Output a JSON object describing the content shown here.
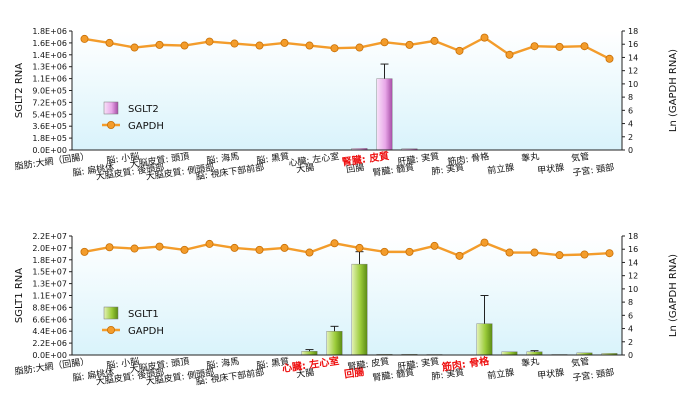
{
  "chart_data": [
    {
      "type": "bar",
      "ylabel": "SGLT2 RNA",
      "y2label": "Ln (GAPDH RNA)",
      "ylim": [
        0,
        1800000
      ],
      "yticks": [
        "0.0E+00",
        "1.8E+05",
        "3.6E+05",
        "5.4E+05",
        "7.2E+05",
        "9.0E+05",
        "1.1E+06",
        "1.3E+06",
        "1.4E+06",
        "1.6E+06",
        "1.8E+06"
      ],
      "y2lim": [
        0,
        18
      ],
      "y2ticks": [
        0,
        2,
        4,
        6,
        8,
        10,
        12,
        14,
        16,
        18
      ],
      "categories": [
        "脂肪:大網（回腸）",
        "脳: 扁桃体",
        "脳: 小脳",
        "大脳皮質: 後頭部",
        "大脳皮質: 頭頂",
        "大脳皮質: 側頭部",
        "脳: 海馬",
        "脳: 視床下部前部",
        "脳: 黒質",
        "大腸",
        "心臓: 左心室",
        "回腸",
        "腎臓: 皮質",
        "腎臓: 髄質",
        "肝臓: 実質",
        "肺: 実質",
        "筋肉: 骨格",
        "前立腺",
        "睾丸",
        "甲状腺",
        "気管",
        "子宮: 頸部"
      ],
      "highlight": [
        12
      ],
      "series": [
        {
          "name": "SGLT2",
          "kind": "bar",
          "color": "#d98ad9",
          "values": [
            0,
            0,
            0,
            0,
            0,
            0,
            0,
            0,
            0,
            0,
            0,
            25000,
            1080000,
            20000,
            0,
            0,
            0,
            0,
            0,
            0,
            0,
            0
          ],
          "errors": [
            0,
            0,
            0,
            0,
            0,
            0,
            0,
            0,
            0,
            0,
            0,
            0,
            220000,
            0,
            0,
            0,
            0,
            0,
            0,
            0,
            0,
            0
          ]
        },
        {
          "name": "GAPDH",
          "kind": "line",
          "axis": "right",
          "color": "#f39c2b",
          "values": [
            16.8,
            16.2,
            15.5,
            15.9,
            15.8,
            16.4,
            16.1,
            15.8,
            16.2,
            15.8,
            15.4,
            15.5,
            16.3,
            15.9,
            16.5,
            15.0,
            17.0,
            14.4,
            15.7,
            15.6,
            15.7,
            13.8
          ]
        }
      ]
    },
    {
      "type": "bar",
      "ylabel": "SGLT1 RNA",
      "y2label": "Ln (GAPDH RNA)",
      "ylim": [
        0,
        22000000
      ],
      "yticks": [
        "0.0E+00",
        "2.2E+06",
        "4.4E+06",
        "6.6E+06",
        "8.8E+06",
        "1.1E+07",
        "1.3E+07",
        "1.5E+07",
        "1.8E+07",
        "2.0E+07",
        "2.2E+07"
      ],
      "y2lim": [
        0,
        18
      ],
      "y2ticks": [
        0,
        2,
        4,
        6,
        8,
        10,
        12,
        14,
        16,
        18
      ],
      "categories": [
        "脂肪:大網（回腸）",
        "脳: 扁桃体",
        "脳: 小脳",
        "大脳皮質: 後頭部",
        "大脳皮質: 頭頂",
        "大脳皮質: 側頭部",
        "脳: 海馬",
        "脳: 視床下部前部",
        "脳: 黒質",
        "大腸",
        "心臓: 左心室",
        "回腸",
        "腎臓: 皮質",
        "腎臓: 髄質",
        "肝臓: 実質",
        "肺: 実質",
        "筋肉: 骨格",
        "前立腺",
        "睾丸",
        "甲状腺",
        "気管",
        "子宮: 頸部"
      ],
      "highlight": [
        10,
        11,
        16
      ],
      "series": [
        {
          "name": "SGLT1",
          "kind": "bar",
          "color": "#8ab52a",
          "values": [
            0,
            0,
            0,
            0,
            0,
            0,
            0,
            0,
            0,
            700000,
            4400000,
            16800000,
            150000,
            150000,
            100000,
            50000,
            5800000,
            600000,
            600000,
            100000,
            400000,
            300000
          ],
          "errors": [
            0,
            0,
            0,
            0,
            0,
            0,
            0,
            0,
            0,
            300000,
            900000,
            2300000,
            0,
            0,
            0,
            0,
            5200000,
            0,
            200000,
            0,
            0,
            0
          ]
        },
        {
          "name": "GAPDH",
          "kind": "line",
          "axis": "right",
          "color": "#f39c2b",
          "values": [
            15.6,
            16.3,
            16.1,
            16.4,
            15.9,
            16.8,
            16.2,
            15.9,
            16.2,
            15.5,
            16.9,
            16.2,
            15.6,
            15.6,
            16.5,
            15.0,
            17.0,
            15.5,
            15.5,
            15.1,
            15.2,
            15.4
          ]
        }
      ]
    }
  ]
}
